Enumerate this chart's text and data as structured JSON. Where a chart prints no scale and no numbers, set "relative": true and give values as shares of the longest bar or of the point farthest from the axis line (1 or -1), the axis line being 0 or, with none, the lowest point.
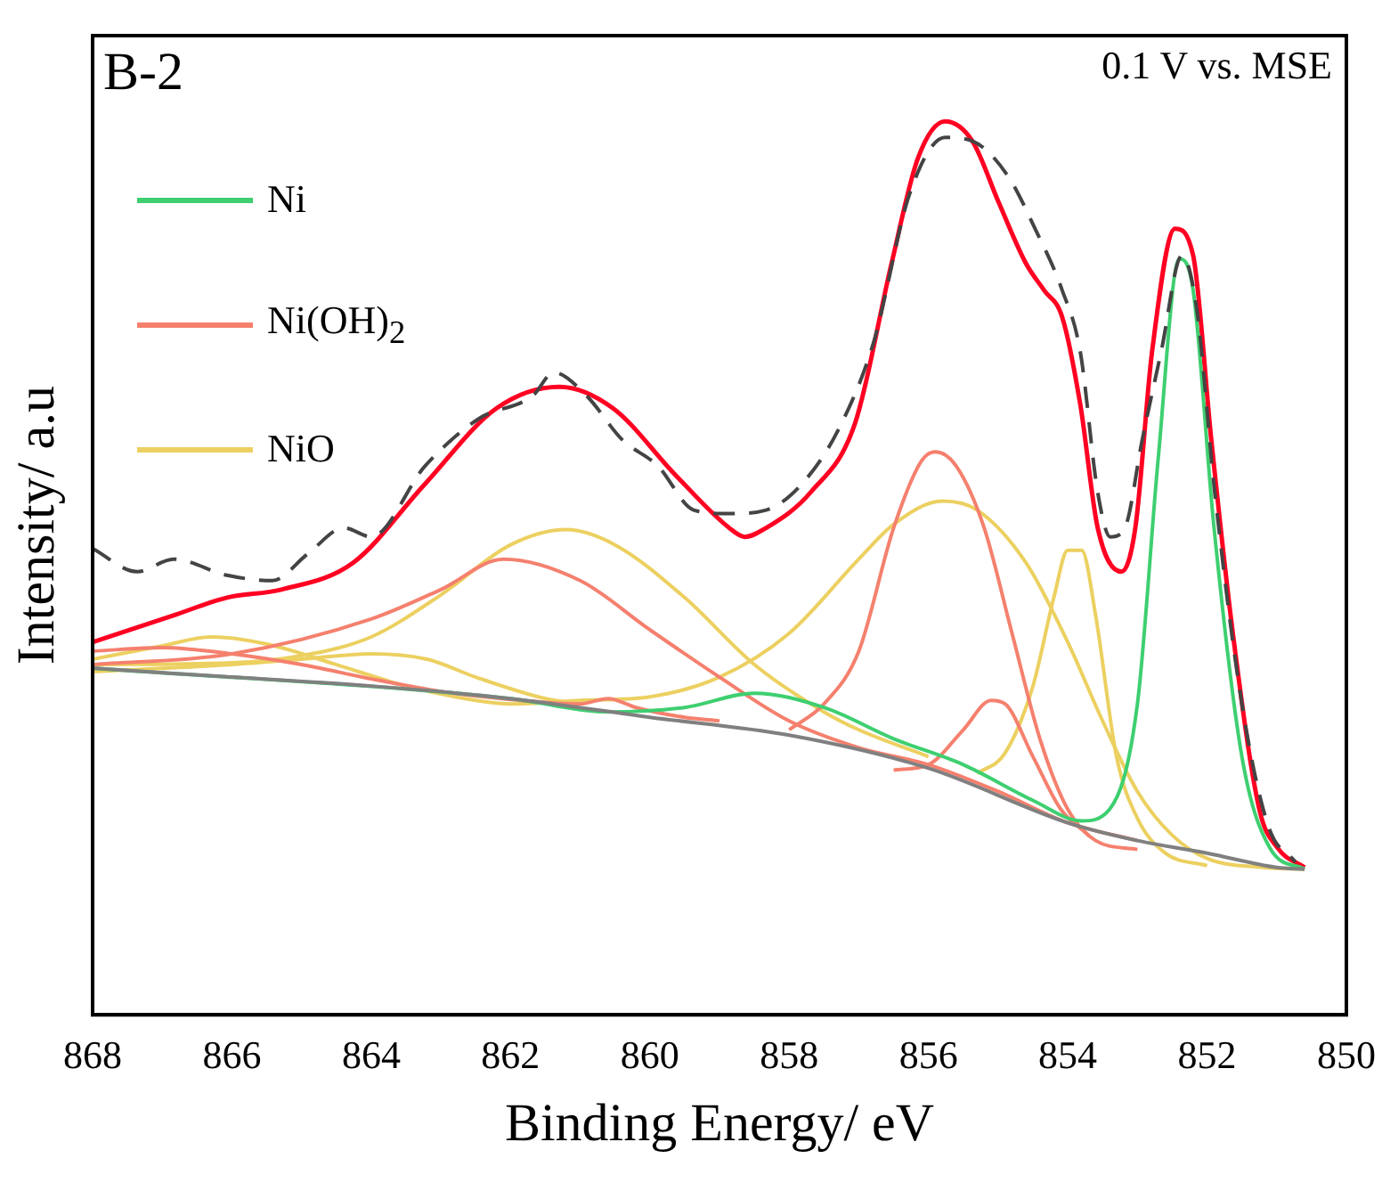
{
  "chart_data": {
    "type": "line",
    "xlabel": "Binding Energy/ eV",
    "ylabel": "Intensity/ a.u",
    "annotations": [
      "B-2",
      "0.1 V vs. MSE"
    ],
    "relative": true,
    "xlim": [
      868,
      850
    ],
    "xticks": [
      868,
      866,
      864,
      862,
      860,
      858,
      856,
      854,
      852,
      850
    ],
    "legend": "top left",
    "marker": "none",
    "grid": false,
    "series": [
      {
        "color": "#444444",
        "line_style": "dashed",
        "x": [
          868,
          867.36,
          866.84,
          866.07,
          865.42,
          864.91,
          864.39,
          864.0,
          863.23,
          862.46,
          861.68,
          861.38,
          860.91,
          860.4,
          859.88,
          859.37,
          858.86,
          858.33,
          857.82,
          857.3,
          856.79,
          856.27,
          855.76,
          855.37,
          854.86,
          854.47,
          854.08,
          853.82,
          853.57,
          853.39,
          853.18,
          852.93,
          852.66,
          852.36,
          852.15,
          851.89,
          851.5,
          851.12,
          850.73
        ],
        "values": [
          0.522,
          0.496,
          0.51,
          0.492,
          0.486,
          0.516,
          0.545,
          0.535,
          0.614,
          0.667,
          0.693,
          0.719,
          0.693,
          0.644,
          0.614,
          0.565,
          0.561,
          0.565,
          0.594,
          0.654,
          0.752,
          0.919,
          0.982,
          0.978,
          0.939,
          0.88,
          0.811,
          0.742,
          0.585,
          0.535,
          0.545,
          0.644,
          0.742,
          0.85,
          0.791,
          0.585,
          0.348,
          0.211,
          0.171
        ]
      },
      {
        "color": "#808080",
        "x": [
          868,
          866,
          864,
          862,
          860,
          858,
          856,
          854,
          853,
          852,
          851,
          850.6
        ],
        "values": [
          0.388,
          0.378,
          0.368,
          0.354,
          0.333,
          0.313,
          0.276,
          0.215,
          0.195,
          0.181,
          0.165,
          0.163
        ]
      },
      {
        "name": "Ni",
        "color": "#3ecf70",
        "x": [
          868,
          862,
          860.6,
          859.5,
          858.5,
          857.5,
          856.5,
          855.5,
          854.5,
          853.8,
          853.4,
          853.0,
          852.7,
          852.4,
          852.2,
          851.9,
          851.5,
          851.1,
          850.6
        ],
        "values": [
          0.388,
          0.354,
          0.339,
          0.344,
          0.36,
          0.344,
          0.309,
          0.28,
          0.24,
          0.217,
          0.23,
          0.348,
          0.624,
          0.846,
          0.811,
          0.545,
          0.289,
          0.187,
          0.163
        ]
      },
      {
        "name": "Ni(OH)$_{2}$",
        "color": "#f5806e",
        "x": [
          868,
          866,
          864,
          863,
          862.1,
          861,
          860,
          859,
          858,
          857,
          856,
          855,
          854,
          853
        ],
        "values": [
          0.392,
          0.404,
          0.443,
          0.476,
          0.51,
          0.486,
          0.431,
          0.378,
          0.329,
          0.299,
          0.28,
          0.25,
          0.215,
          0.195
        ]
      },
      {
        "color": "#f5806e",
        "x": [
          868,
          867,
          866,
          865,
          864,
          863,
          862,
          861,
          860.6,
          860.2,
          859.5,
          859
        ],
        "values": [
          0.407,
          0.411,
          0.404,
          0.392,
          0.376,
          0.362,
          0.353,
          0.348,
          0.354,
          0.344,
          0.333,
          0.329
        ]
      },
      {
        "color": "#f5806e",
        "x": [
          858,
          857.5,
          857,
          856.5,
          856.1,
          855.9,
          855.6,
          855.2,
          854.8,
          854.4,
          854,
          853.6,
          853
        ],
        "values": [
          0.319,
          0.348,
          0.407,
          0.545,
          0.62,
          0.63,
          0.614,
          0.545,
          0.427,
          0.309,
          0.23,
          0.195,
          0.185
        ]
      },
      {
        "color": "#f5806e",
        "x": [
          856.5,
          856,
          855.5,
          855.1,
          854.9,
          854.5,
          854.1,
          853.7
        ],
        "values": [
          0.274,
          0.28,
          0.319,
          0.352,
          0.348,
          0.289,
          0.23,
          0.201
        ]
      },
      {
        "name": "NiO",
        "color": "#ecd060",
        "x": [
          868,
          867,
          866.3,
          865.5,
          864.5,
          863.5,
          862.5,
          862,
          861,
          860,
          859,
          858,
          857,
          856.5,
          855.8,
          855.3,
          854.6,
          854,
          853.5,
          853,
          852.5,
          852,
          851.2,
          850.6
        ],
        "values": [
          0.398,
          0.413,
          0.423,
          0.415,
          0.392,
          0.368,
          0.352,
          0.348,
          0.352,
          0.356,
          0.378,
          0.427,
          0.51,
          0.549,
          0.575,
          0.565,
          0.506,
          0.417,
          0.329,
          0.25,
          0.201,
          0.175,
          0.165,
          0.163
        ]
      },
      {
        "color": "#ecd060",
        "x": [
          868,
          866,
          865,
          864,
          863.2,
          862.5,
          861.5,
          861
        ],
        "values": [
          0.384,
          0.392,
          0.398,
          0.404,
          0.398,
          0.378,
          0.354,
          0.348
        ]
      },
      {
        "color": "#ecd060",
        "x": [
          868,
          866,
          865,
          864,
          863,
          862,
          861.2,
          860.5,
          859.5,
          858.5,
          857.5,
          857,
          856
        ],
        "values": [
          0.392,
          0.394,
          0.402,
          0.423,
          0.47,
          0.526,
          0.543,
          0.526,
          0.467,
          0.392,
          0.339,
          0.319,
          0.289
        ]
      },
      {
        "color": "#ecd060",
        "x": [
          855.3,
          854.9,
          854.5,
          854.2,
          854,
          853.8,
          853.6,
          853.3,
          853,
          852.6,
          852
        ],
        "values": [
          0.27,
          0.293,
          0.368,
          0.467,
          0.52,
          0.52,
          0.447,
          0.289,
          0.22,
          0.181,
          0.167
        ]
      },
      {
        "color": "#ff0022",
        "x": [
          868,
          866.84,
          866.07,
          865.29,
          864.26,
          863.23,
          862.2,
          861.3,
          860.53,
          859.63,
          858.86,
          858.64,
          858.33,
          857.69,
          857.05,
          856.53,
          856.15,
          855.76,
          855.37,
          854.99,
          854.6,
          854.34,
          854.08,
          853.82,
          853.57,
          853.23,
          853.03,
          852.79,
          852.46,
          852.2,
          851.94,
          851.63,
          851.25,
          850.99,
          850.6
        ],
        "values": [
          0.417,
          0.447,
          0.467,
          0.476,
          0.506,
          0.594,
          0.679,
          0.703,
          0.679,
          0.604,
          0.545,
          0.535,
          0.545,
          0.585,
          0.663,
          0.841,
          0.959,
          1,
          0.978,
          0.909,
          0.841,
          0.811,
          0.781,
          0.683,
          0.545,
          0.496,
          0.545,
          0.742,
          0.88,
          0.85,
          0.644,
          0.427,
          0.23,
          0.187,
          0.165
        ]
      }
    ]
  }
}
